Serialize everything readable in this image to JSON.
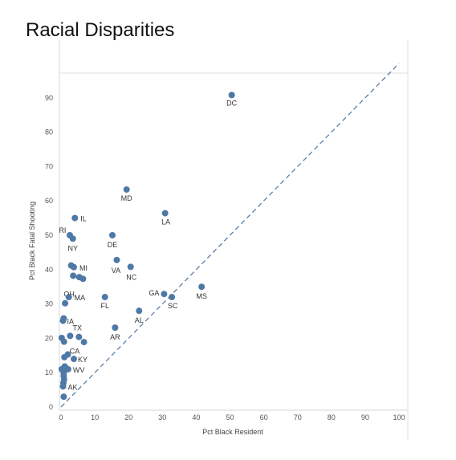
{
  "chart_data": {
    "type": "scatter",
    "title": "Racial Disparities",
    "xlabel": "Pct Black Resident",
    "ylabel": "Pct Black Fatal Shooting",
    "xlim": [
      0,
      100
    ],
    "ylim": [
      0,
      100
    ],
    "x_ticks": [
      "0",
      "10",
      "20",
      "30",
      "40",
      "50",
      "60",
      "70",
      "80",
      "90",
      "100"
    ],
    "y_ticks": [
      "0",
      "10",
      "20",
      "30",
      "40",
      "50",
      "60",
      "70",
      "80",
      "90"
    ],
    "point_color": "#4e79a7",
    "reference_line": {
      "style": "dashed",
      "color": "#5a7fa8",
      "from": [
        0,
        0
      ],
      "to": [
        100,
        100
      ]
    },
    "points": [
      {
        "x": 50.5,
        "y": 90.8,
        "label": "DC"
      },
      {
        "x": 19.4,
        "y": 63.3,
        "label": "MD"
      },
      {
        "x": 30.8,
        "y": 56.4,
        "label": "LA"
      },
      {
        "x": 4.1,
        "y": 55.0,
        "label": "IL"
      },
      {
        "x": 2.6,
        "y": 50.0,
        "label": "RI"
      },
      {
        "x": 3.5,
        "y": 49.0,
        "label": "NY"
      },
      {
        "x": 15.2,
        "y": 50.0,
        "label": "DE"
      },
      {
        "x": 16.5,
        "y": 42.8,
        "label": "VA"
      },
      {
        "x": 20.6,
        "y": 40.8,
        "label": "NC"
      },
      {
        "x": 3.0,
        "y": 41.2,
        "label": ""
      },
      {
        "x": 3.8,
        "y": 40.7,
        "label": "MI"
      },
      {
        "x": 3.6,
        "y": 38.2,
        "label": ""
      },
      {
        "x": 5.4,
        "y": 37.8,
        "label": ""
      },
      {
        "x": 6.5,
        "y": 37.3,
        "label": "OH"
      },
      {
        "x": 41.6,
        "y": 35.0,
        "label": "MS"
      },
      {
        "x": 30.5,
        "y": 32.9,
        "label": "GA"
      },
      {
        "x": 32.8,
        "y": 32.0,
        "label": "SC"
      },
      {
        "x": 13.0,
        "y": 32.0,
        "label": "FL"
      },
      {
        "x": 2.3,
        "y": 32.0,
        "label": "MA"
      },
      {
        "x": 1.2,
        "y": 30.2,
        "label": ""
      },
      {
        "x": 23.1,
        "y": 28.0,
        "label": "AL"
      },
      {
        "x": 0.8,
        "y": 25.8,
        "label": ""
      },
      {
        "x": 0.6,
        "y": 25.1,
        "label": "IA"
      },
      {
        "x": 16.0,
        "y": 23.1,
        "label": "AR"
      },
      {
        "x": 2.7,
        "y": 20.7,
        "label": ""
      },
      {
        "x": 5.3,
        "y": 20.4,
        "label": "TX"
      },
      {
        "x": 6.8,
        "y": 18.9,
        "label": ""
      },
      {
        "x": 0.2,
        "y": 20.1,
        "label": ""
      },
      {
        "x": 0.9,
        "y": 19.0,
        "label": "CA"
      },
      {
        "x": 2.0,
        "y": 15.3,
        "label": ""
      },
      {
        "x": 1.0,
        "y": 14.5,
        "label": ""
      },
      {
        "x": 3.8,
        "y": 14.0,
        "label": "KY"
      },
      {
        "x": 1.1,
        "y": 11.8,
        "label": ""
      },
      {
        "x": 0.2,
        "y": 11.0,
        "label": ""
      },
      {
        "x": 2.1,
        "y": 11.0,
        "label": "WV"
      },
      {
        "x": 0.8,
        "y": 10.0,
        "label": ""
      },
      {
        "x": 0.8,
        "y": 9.0,
        "label": ""
      },
      {
        "x": 0.9,
        "y": 8.0,
        "label": ""
      },
      {
        "x": 0.7,
        "y": 7.0,
        "label": ""
      },
      {
        "x": 0.6,
        "y": 6.0,
        "label": "AK"
      },
      {
        "x": 0.8,
        "y": 3.0,
        "label": ""
      }
    ]
  }
}
